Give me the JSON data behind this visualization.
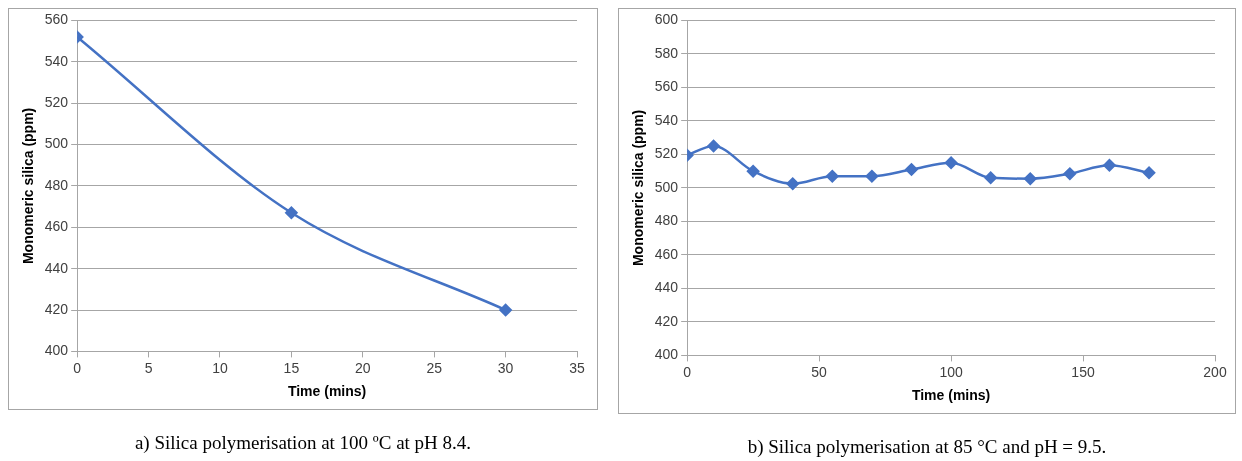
{
  "chart_data": [
    {
      "type": "line",
      "xlabel": "Time (mins)",
      "ylabel": "Monomeric silica (ppm)",
      "x": [
        0,
        15,
        30
      ],
      "values": [
        552,
        467,
        420
      ],
      "color": "#4472c4",
      "marker": "diamond",
      "xlim": [
        0,
        35
      ],
      "xticks": [
        0,
        5,
        10,
        15,
        20,
        25,
        30,
        35
      ],
      "ylim": [
        400,
        560
      ],
      "yticks": [
        400,
        420,
        440,
        460,
        480,
        500,
        520,
        540,
        560
      ],
      "grid": "y",
      "annotations": [
        "a) Silica polymerisation at 100 ºC at pH 8.4."
      ]
    },
    {
      "type": "line",
      "xlabel": "Time (mins)",
      "ylabel": "Monomeric silica (ppm)",
      "x": [
        0,
        10,
        25,
        40,
        55,
        70,
        85,
        100,
        115,
        130,
        145,
        160,
        175
      ],
      "values": [
        519.5,
        525,
        510,
        502.5,
        507,
        507,
        511,
        515,
        506,
        505.5,
        508.5,
        513.5,
        509
      ],
      "color": "#4472c4",
      "marker": "diamond",
      "xlim": [
        0,
        200
      ],
      "xticks": [
        0,
        50,
        100,
        150,
        200
      ],
      "ylim": [
        400,
        600
      ],
      "yticks": [
        400,
        420,
        440,
        460,
        480,
        500,
        520,
        540,
        560,
        580,
        600
      ],
      "grid": "y",
      "annotations": [
        "b) Silica polymerisation at 85 °C and pH = 9.5."
      ]
    }
  ]
}
